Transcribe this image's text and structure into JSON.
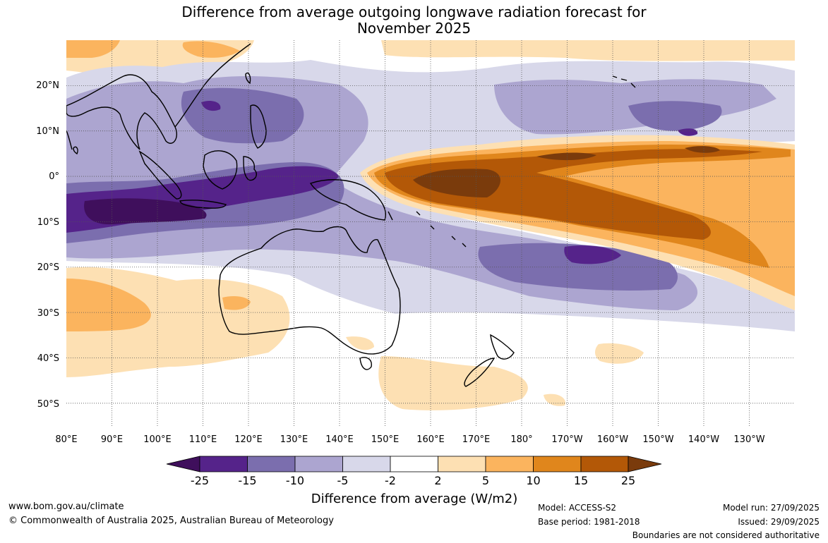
{
  "title": {
    "line1": "Difference from average outgoing longwave radiation forecast for",
    "line2": "November 2025"
  },
  "map": {
    "lon_labels": [
      "80°E",
      "90°E",
      "100°E",
      "110°E",
      "120°E",
      "130°E",
      "140°E",
      "150°E",
      "160°E",
      "170°E",
      "180°",
      "170°W",
      "160°W",
      "150°W",
      "140°W",
      "130°W"
    ],
    "lat_labels": [
      "20°N",
      "10°N",
      "0°",
      "10°S",
      "20°S",
      "30°S",
      "40°S",
      "50°S"
    ],
    "lon_range": [
      80,
      240
    ],
    "lat_range": [
      -55,
      30
    ]
  },
  "colorbar": {
    "title": "Difference from average (W/m2)",
    "tick_labels": [
      "-25",
      "-15",
      "-10",
      "-5",
      "-2",
      "2",
      "5",
      "10",
      "15",
      "25"
    ],
    "colors": {
      "lt_minus25": "#3f0f5c",
      "m25_m15": "#55238a",
      "m15_m10": "#7b6eae",
      "m10_m5": "#aca5d0",
      "m5_m2": "#d8d8ea",
      "m2_2": "#ffffff",
      "p2_p5": "#fde0b3",
      "p5_p10": "#fbb45e",
      "p10_p15": "#e0861c",
      "p15_p25": "#b35807",
      "gt_25": "#7a3b0c"
    }
  },
  "footer": {
    "website": "www.bom.gov.au/climate",
    "copyright": "© Commonwealth of Australia 2025, Australian Bureau of Meteorology",
    "model": "Model: ACCESS-S2",
    "base_period": "Base period: 1981-2018",
    "model_run": "Model run: 27/09/2025",
    "issued": "Issued: 29/09/2025",
    "disclaimer": "Boundaries are not considered authoritative"
  }
}
